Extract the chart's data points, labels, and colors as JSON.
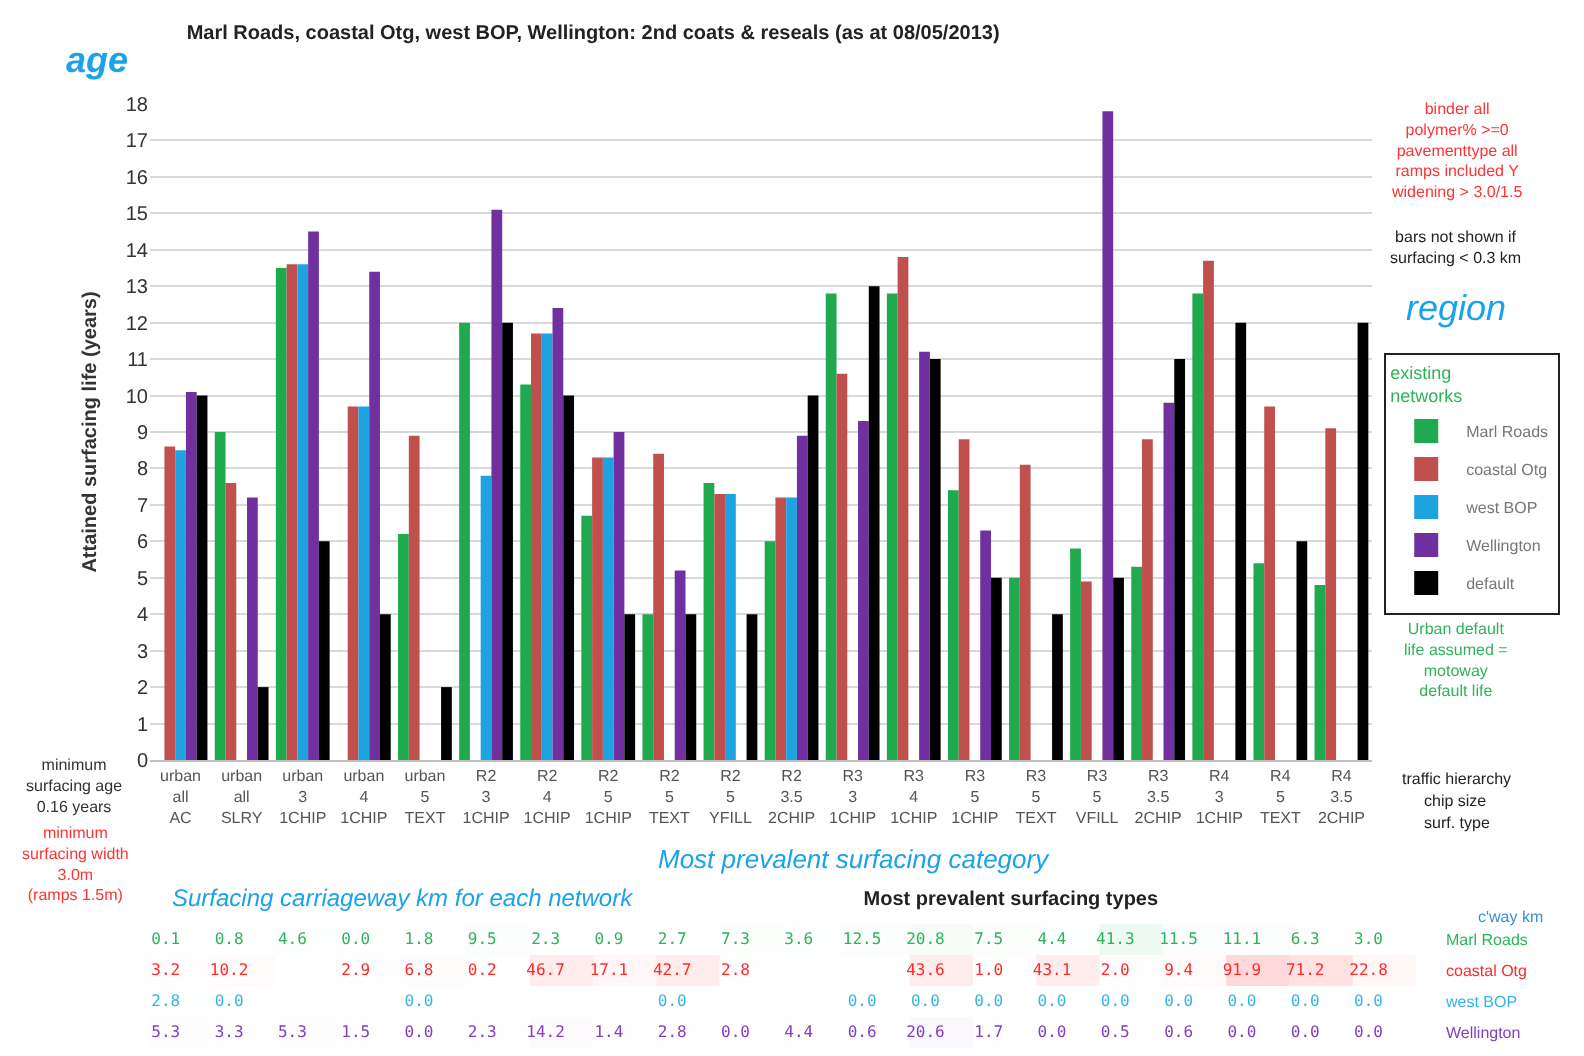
{
  "chart_data": [
    {
      "type": "bar",
      "title": "Marl Roads, coastal Otg, west BOP, Wellington: 2nd coats & reseals (as at 08/05/2013)",
      "ylabel": "Attained surfacing life (years)",
      "categories": [
        "urban\nall\nAC",
        "urban\nall\nSLRY",
        "urban\n3\n1CHIP",
        "urban\n4\n1CHIP",
        "urban\n5\nTEXT",
        "R2\n3\n1CHIP",
        "R2\n4\n1CHIP",
        "R2\n5\n1CHIP",
        "R2\n5\nTEXT",
        "R2\n5\nYFILL",
        "R2\n3.5\n2CHIP",
        "R3\n3\n1CHIP",
        "R3\n4\n1CHIP",
        "R3\n5\n1CHIP",
        "R3\n5\nTEXT",
        "R3\n5\nVFILL",
        "R3\n3.5\n2CHIP",
        "R4\n3\n1CHIP",
        "R4\n5\nTEXT",
        "R4\n3.5\n2CHIP"
      ],
      "series": [
        {
          "name": "Marl Roads",
          "color": "#1faa50",
          "values": [
            null,
            9.0,
            13.5,
            null,
            6.2,
            12.0,
            10.3,
            6.7,
            4.0,
            7.6,
            6.0,
            12.8,
            12.8,
            7.4,
            5.0,
            5.8,
            5.3,
            12.8,
            5.4,
            4.8
          ]
        },
        {
          "name": "coastal Otg",
          "color": "#c0504d",
          "values": [
            8.6,
            7.6,
            13.6,
            9.7,
            8.9,
            null,
            11.7,
            8.3,
            8.4,
            7.3,
            7.2,
            10.6,
            13.8,
            8.8,
            8.1,
            4.9,
            8.8,
            13.7,
            9.7,
            9.1
          ]
        },
        {
          "name": "west BOP",
          "color": "#1ca3e0",
          "values": [
            8.5,
            null,
            13.6,
            9.7,
            null,
            7.8,
            11.7,
            8.3,
            null,
            7.3,
            7.2,
            null,
            null,
            null,
            null,
            null,
            null,
            null,
            null,
            null
          ]
        },
        {
          "name": "Wellington",
          "color": "#7030a0",
          "values": [
            10.1,
            7.2,
            14.5,
            13.4,
            null,
            15.1,
            12.4,
            9.0,
            5.2,
            null,
            8.9,
            9.3,
            11.2,
            6.3,
            null,
            17.8,
            9.8,
            null,
            null,
            null
          ]
        },
        {
          "name": "default",
          "color": "#000000",
          "values": [
            10,
            2,
            6,
            4,
            2,
            12,
            10,
            4,
            4,
            4,
            10,
            13,
            11,
            5,
            4,
            5,
            11,
            12,
            6,
            12
          ]
        }
      ],
      "ylim": [
        0,
        18
      ],
      "yticks": [
        0,
        1,
        2,
        3,
        4,
        5,
        6,
        7,
        8,
        9,
        10,
        11,
        12,
        13,
        14,
        15,
        16,
        17,
        18
      ],
      "grid": "y",
      "legend": "right",
      "legend_title": "existing networks",
      "annotations": [
        "age",
        "binder all\npolymer% >=0\npavementtype all\nramps included Y\nwidening > 3.0/1.5",
        "bars not shown if\nsurfacing < 0.3 km",
        "Urban default\nlife assumed =\nmotoway\ndefault life",
        "region",
        "traffic hierarchy",
        "chip size",
        "surf. type",
        "minimum\nsurfacing age\n0.16 years",
        "minimum\nsurfacing width\n3.0m\n(ramps 1.5m)",
        "Most prevalent surfacing category"
      ]
    },
    {
      "type": "heatmap",
      "title": "Most prevalent surfacing types",
      "categories": [
        null,
        null,
        null,
        null,
        null,
        null,
        null,
        null,
        null,
        null,
        null,
        null,
        null,
        null,
        null,
        null,
        null,
        null,
        null,
        null
      ],
      "y_categories": [
        "Marl Roads",
        "coastal Otg",
        "west BOP",
        "Wellington"
      ],
      "colors": [
        "#2db35a",
        "#ff2a2a",
        "#33b5e8",
        "#8040c0"
      ],
      "cells": [
        [
          0.1,
          0.8,
          4.6,
          0.0,
          1.8,
          9.5,
          2.3,
          0.9,
          2.7,
          7.3,
          3.6,
          12.5,
          20.8,
          7.5,
          4.4,
          41.3,
          11.5,
          11.1,
          6.3,
          3.0
        ],
        [
          3.2,
          10.2,
          null,
          2.9,
          6.8,
          0.2,
          46.7,
          17.1,
          42.7,
          2.8,
          null,
          null,
          43.6,
          1.0,
          43.1,
          2.0,
          9.4,
          91.9,
          71.2,
          22.8
        ],
        [
          2.8,
          0.0,
          null,
          null,
          0.0,
          null,
          null,
          null,
          0.0,
          null,
          null,
          0.0,
          0.0,
          0.0,
          0.0,
          0.0,
          0.0,
          0.0,
          0.0,
          0.0
        ],
        [
          5.3,
          3.3,
          5.3,
          1.5,
          0.0,
          2.3,
          14.2,
          1.4,
          2.8,
          0.0,
          4.4,
          0.6,
          20.6,
          1.7,
          0.0,
          0.5,
          0.6,
          0.0,
          0.0,
          0.0
        ]
      ],
      "cell_labels": [
        [
          "0.1",
          "0.8",
          "4.6",
          "0.0",
          "1.8",
          "9.5",
          "2.3",
          "0.9",
          "2.7",
          "7.3",
          "3.6",
          "12.5",
          "20.8",
          "7.5",
          "4.4",
          "41.3",
          "11.5",
          "11.1",
          "6.3",
          "3.0"
        ],
        [
          "3.2",
          "10.2",
          null,
          "2.9",
          "6.8",
          "0.2",
          "46.7",
          "17.1",
          "42.7",
          "2.8",
          null,
          null,
          "43.6",
          "1.0",
          "43.1",
          "2.0",
          "9.4",
          "91.9",
          "71.2",
          "22.8"
        ],
        [
          "2.8",
          "0.0",
          null,
          null,
          "0.0",
          null,
          null,
          null,
          "0.0",
          null,
          null,
          "0.0",
          "0.0",
          "0.0",
          "0.0",
          "0.0",
          "0.0",
          "0.0",
          "0.0",
          "0.0"
        ],
        [
          "5.3",
          "3.3",
          "5.3",
          "1.5",
          "0.0",
          "2.3",
          "14.2",
          "1.4",
          "2.8",
          "0.0",
          "4.4",
          "0.6",
          "20.6",
          "1.7",
          "0.0",
          "0.5",
          "0.6",
          "0.0",
          "0.0",
          "0.0"
        ]
      ],
      "annotations": [
        "c'way km",
        "Surfacing carriageway km for each network"
      ]
    }
  ]
}
